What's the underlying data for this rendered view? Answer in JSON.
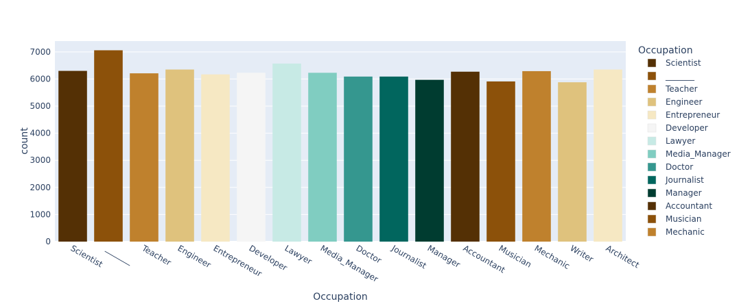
{
  "chart_data": {
    "type": "bar",
    "xlabel": "Occupation",
    "ylabel": "count",
    "ylim": [
      0,
      7400
    ],
    "yticks": [
      0,
      1000,
      2000,
      3000,
      4000,
      5000,
      6000,
      7000
    ],
    "grid": true,
    "legend_title": "Occupation",
    "legend_position": "right",
    "categories": [
      "Scientist",
      "_______",
      "Teacher",
      "Engineer",
      "Entrepreneur",
      "Developer",
      "Lawyer",
      "Media_Manager",
      "Doctor",
      "Journalist",
      "Manager",
      "Accountant",
      "Musician",
      "Mechanic",
      "Writer",
      "Architect"
    ],
    "values": [
      6300,
      7060,
      6210,
      6350,
      6170,
      6230,
      6570,
      6230,
      6090,
      6090,
      5970,
      6270,
      5910,
      6290,
      5880,
      6350
    ],
    "colors": [
      "#543005",
      "#8c510a",
      "#bf812d",
      "#dfc27d",
      "#f6e8c3",
      "#f5f5f5",
      "#c7eae5",
      "#80cdc1",
      "#35978f",
      "#01665e",
      "#003c30",
      "#543005",
      "#8c510a",
      "#bf812d",
      "#dfc27d",
      "#f6e8c3"
    ],
    "legend_items": [
      "Scientist",
      "_______",
      "Teacher",
      "Engineer",
      "Entrepreneur",
      "Developer",
      "Lawyer",
      "Media_Manager",
      "Doctor",
      "Journalist",
      "Manager",
      "Accountant",
      "Musician",
      "Mechanic"
    ],
    "plot_background": "#e5ecf6"
  }
}
